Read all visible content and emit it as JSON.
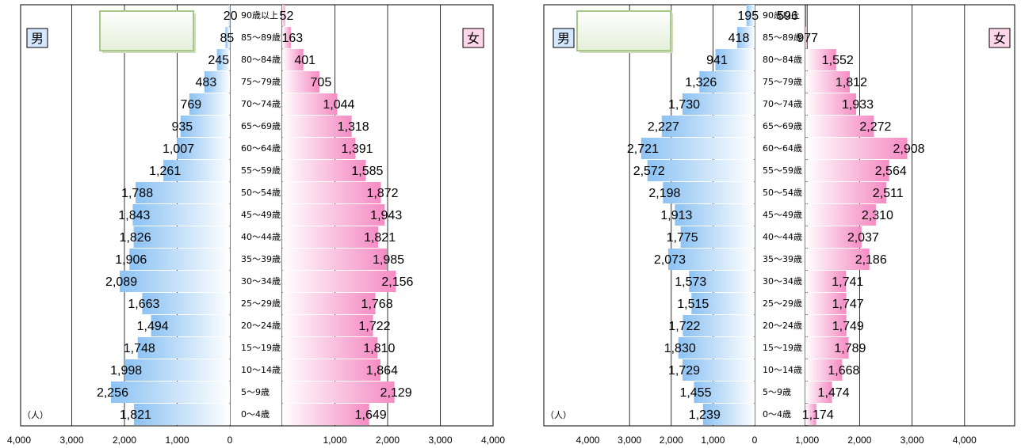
{
  "colors": {
    "male_bar": "#8fc4f4",
    "female_bar": "#f58fc6",
    "grid": "#000000",
    "label_box_border": "#a8c88a"
  },
  "chart_data": [
    {
      "type": "bar",
      "orientation": "horizontal-population-pyramid",
      "male_label": "男",
      "female_label": "女",
      "unit_label": "（人）",
      "categories": [
        "0～4歳",
        "5～9歳",
        "10～14歳",
        "15～19歳",
        "20～24歳",
        "25～29歳",
        "30～34歳",
        "35～39歳",
        "40～44歳",
        "45～49歳",
        "50～54歳",
        "55～59歳",
        "60～64歳",
        "65～69歳",
        "70～74歳",
        "75～79歳",
        "80～84歳",
        "85～89歳",
        "90歳以上"
      ],
      "series": [
        {
          "name": "男",
          "values": [
            1821,
            2256,
            1998,
            1748,
            1494,
            1663,
            2089,
            1906,
            1826,
            1843,
            1788,
            1261,
            1007,
            935,
            769,
            483,
            245,
            85,
            20
          ]
        },
        {
          "name": "女",
          "values": [
            1649,
            2129,
            1864,
            1810,
            1722,
            1768,
            2156,
            1985,
            1821,
            1943,
            1872,
            1585,
            1391,
            1318,
            1044,
            705,
            401,
            163,
            52
          ]
        }
      ],
      "labels": {
        "male": [
          "1,821",
          "2,256",
          "1,998",
          "1,748",
          "1,494",
          "1,663",
          "2,089",
          "1,906",
          "1,826",
          "1,843",
          "1,788",
          "1,261",
          "1,007",
          "935",
          "769",
          "483",
          "245",
          "85",
          "20"
        ],
        "female": [
          "1,649",
          "2,129",
          "1,864",
          "1,810",
          "1,722",
          "1,768",
          "2,156",
          "1,985",
          "1,821",
          "1,943",
          "1,872",
          "1,585",
          "1,391",
          "1,318",
          "1,044",
          "705",
          "401",
          "163",
          "52"
        ]
      },
      "xlim": [
        0,
        4000
      ],
      "male_ticks": [
        "4,000",
        "3,000",
        "2,000",
        "1,000",
        "0"
      ],
      "female_ticks": [
        "1,000",
        "2,000",
        "3,000",
        "4,000"
      ],
      "grid": true
    },
    {
      "type": "bar",
      "orientation": "horizontal-population-pyramid",
      "male_label": "男",
      "female_label": "女",
      "unit_label": "（人）",
      "categories": [
        "0～4歳",
        "5～9歳",
        "10～14歳",
        "15～19歳",
        "20～24歳",
        "25～29歳",
        "30～34歳",
        "35～39歳",
        "40～44歳",
        "45～49歳",
        "50～54歳",
        "55～59歳",
        "60～64歳",
        "65～69歳",
        "70～74歳",
        "75～79歳",
        "80～84歳",
        "85～89歳",
        "90歳以上"
      ],
      "series": [
        {
          "name": "男",
          "values": [
            1239,
            1455,
            1729,
            1830,
            1722,
            1515,
            1573,
            2073,
            1775,
            1913,
            2198,
            2572,
            2721,
            2227,
            1730,
            1326,
            941,
            418,
            195
          ]
        },
        {
          "name": "女",
          "values": [
            1174,
            1474,
            1668,
            1789,
            1749,
            1747,
            1741,
            2186,
            2037,
            2310,
            2511,
            2564,
            2908,
            2272,
            1933,
            1812,
            1552,
            977,
            596
          ]
        }
      ],
      "labels": {
        "male": [
          "1,239",
          "1,455",
          "1,729",
          "1,830",
          "1,722",
          "1,515",
          "1,573",
          "2,073",
          "1,775",
          "1,913",
          "2,198",
          "2,572",
          "2,721",
          "2,227",
          "1,730",
          "1,326",
          "941",
          "418",
          "195"
        ],
        "female": [
          "1,174",
          "1,474",
          "1,668",
          "1,789",
          "1,749",
          "1,747",
          "1,741",
          "2,186",
          "2,037",
          "2,310",
          "2,511",
          "2,564",
          "2,908",
          "2,272",
          "1,933",
          "1,812",
          "1,552",
          "977",
          "596"
        ]
      },
      "xlim": [
        0,
        4000
      ],
      "male_ticks": [
        "4,000",
        "3,000",
        "2,000",
        "1,000",
        "0"
      ],
      "female_ticks": [
        "1,000",
        "2,000",
        "3,000",
        "4,000"
      ],
      "grid": true
    }
  ]
}
